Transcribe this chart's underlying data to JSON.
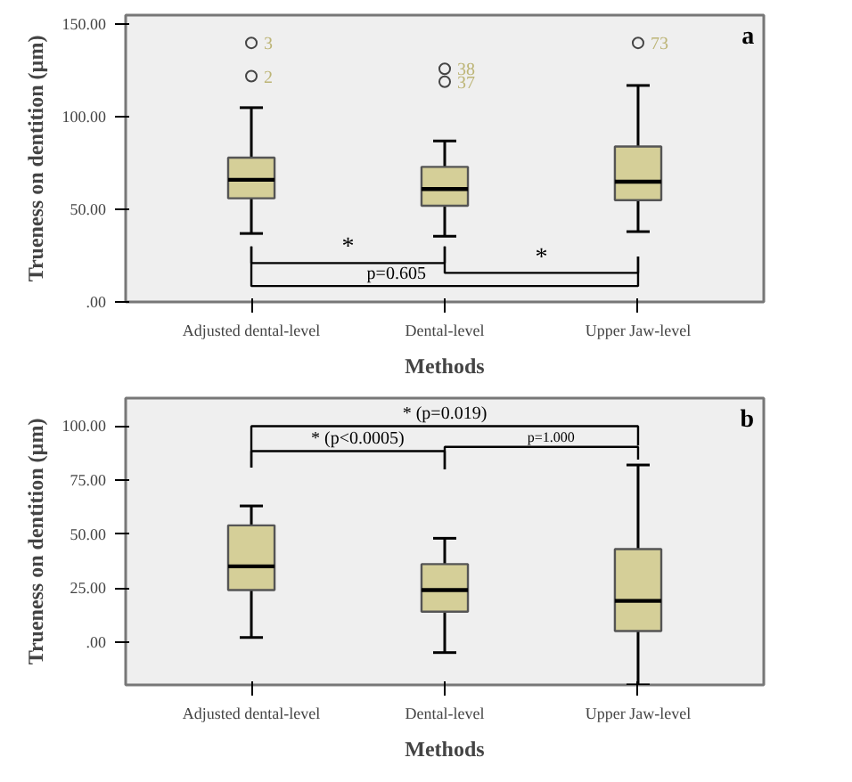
{
  "chart_data": [
    {
      "type": "box",
      "xlabel": "Methods",
      "ylabel": "Trueness on dentition (µm)",
      "categories": [
        "Adjusted dental-level",
        "Dental-level",
        "Upper Jaw-level"
      ],
      "color": "#d5cf98",
      "boxes": [
        {
          "low": 37,
          "q1": 56,
          "median": 66,
          "q3": 78,
          "high": 105,
          "outliers": [
            140,
            122
          ]
        },
        {
          "low": 35.5,
          "q1": 52,
          "median": 61,
          "q3": 73,
          "high": 87,
          "outliers": [
            126,
            119
          ]
        },
        {
          "low": 38,
          "q1": 55,
          "median": 65,
          "q3": 84,
          "high": 117,
          "outliers": [
            140
          ]
        }
      ],
      "ylim": [
        0,
        155
      ],
      "yticks": [
        {
          "value": 0,
          "label": ".00"
        },
        {
          "value": 50,
          "label": "50.00"
        },
        {
          "value": 100,
          "label": "100.00"
        },
        {
          "value": 150,
          "label": "150.00"
        }
      ],
      "grid": false,
      "annotations": [
        "a",
        "*",
        "*",
        "p=0.605",
        "3",
        "2",
        "38",
        "37",
        "73"
      ]
    },
    {
      "type": "box",
      "xlabel": "Methods",
      "ylabel": "Trueness on dentition (µm)",
      "categories": [
        "Adjusted dental-level",
        "Dental-level",
        "Upper Jaw-level"
      ],
      "color": "#d5cf98",
      "boxes": [
        {
          "low": 2,
          "q1": 24,
          "median": 35,
          "q3": 54,
          "high": 63
        },
        {
          "low": -5,
          "q1": 14,
          "median": 24,
          "q3": 36,
          "high": 48
        },
        {
          "low": -20,
          "q1": 5,
          "median": 19,
          "q3": 43,
          "high": 82
        }
      ],
      "ylim": [
        -20,
        113
      ],
      "yticks": [
        {
          "value": 0,
          "label": ".00"
        },
        {
          "value": 25,
          "label": "25.00"
        },
        {
          "value": 50,
          "label": "50.00"
        },
        {
          "value": 75,
          "label": "75.00"
        },
        {
          "value": 100,
          "label": "100.00"
        }
      ],
      "grid": false,
      "annotations": [
        "b",
        "* (p=0.019)",
        "* (p<0.0005)",
        "p=1.000"
      ]
    }
  ]
}
